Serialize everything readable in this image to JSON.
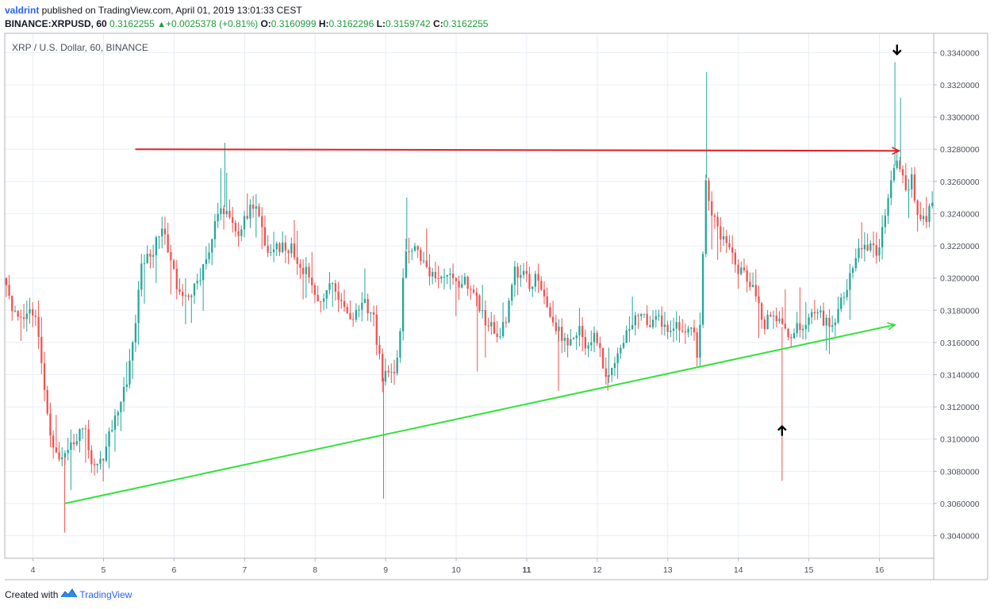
{
  "header": {
    "author": "valdrint",
    "published_text": " published on TradingView.com, April 01, 2019 13:01:33 CEST",
    "symbol": "BINANCE:XRPUSD, 60",
    "last": "0.3162255",
    "change_arrow": "▲",
    "change": "+0.0025378 (+0.81%)",
    "open_label": "O:",
    "open": "0.3160999",
    "high_label": "H:",
    "high": "0.3162296",
    "low_label": "L:",
    "low": "0.3159742",
    "close_label": "C:",
    "close": "0.3162255"
  },
  "footer": {
    "created_with": "Created with",
    "brand": "TradingView"
  },
  "chart_data": {
    "type": "candlestick",
    "title": "XRP / U.S. Dollar, 60, BINANCE",
    "x_ticks": [
      {
        "day": 4,
        "label": "4"
      },
      {
        "day": 5,
        "label": "5"
      },
      {
        "day": 6,
        "label": "6"
      },
      {
        "day": 7,
        "label": "7"
      },
      {
        "day": 8,
        "label": "8"
      },
      {
        "day": 9,
        "label": "9"
      },
      {
        "day": 10,
        "label": "10"
      },
      {
        "day": 11,
        "label": "11",
        "bold": true
      },
      {
        "day": 12,
        "label": "12"
      },
      {
        "day": 13,
        "label": "13"
      },
      {
        "day": 14,
        "label": "14"
      },
      {
        "day": 15,
        "label": "15"
      },
      {
        "day": 16,
        "label": "16"
      }
    ],
    "x_range": [
      3.6,
      16.77
    ],
    "y_range": [
      0.3026,
      0.3352
    ],
    "y_ticks": [
      0.304,
      0.306,
      0.308,
      0.31,
      0.312,
      0.314,
      0.316,
      0.318,
      0.32,
      0.322,
      0.324,
      0.326,
      0.328,
      0.33,
      0.332,
      0.334
    ],
    "y_tick_labels": [
      "0.3040000",
      "0.3060000",
      "0.3080000",
      "0.3100000",
      "0.3120000",
      "0.3140000",
      "0.3160000",
      "0.3180000",
      "0.3200000",
      "0.3220000",
      "0.3240000",
      "0.3260000",
      "0.3280000",
      "0.3300000",
      "0.3320000",
      "0.3340000"
    ],
    "grid": true,
    "colors": {
      "up": "#26a69a",
      "down": "#ef5350",
      "grid": "#e8eef6",
      "resistance": "#e0202a",
      "support": "#33e23a",
      "marker": "#000000"
    },
    "price_path": [
      [
        3.6,
        0.32
      ],
      [
        3.72,
        0.3178
      ],
      [
        3.85,
        0.3172
      ],
      [
        4.02,
        0.318
      ],
      [
        4.12,
        0.316
      ],
      [
        4.22,
        0.3115
      ],
      [
        4.3,
        0.3098
      ],
      [
        4.4,
        0.3084
      ],
      [
        4.5,
        0.3094
      ],
      [
        4.6,
        0.31
      ],
      [
        4.75,
        0.311
      ],
      [
        4.85,
        0.3086
      ],
      [
        4.95,
        0.3082
      ],
      [
        5.05,
        0.3095
      ],
      [
        5.2,
        0.3116
      ],
      [
        5.35,
        0.3135
      ],
      [
        5.48,
        0.317
      ],
      [
        5.55,
        0.3205
      ],
      [
        5.7,
        0.3215
      ],
      [
        5.85,
        0.3232
      ],
      [
        5.95,
        0.3218
      ],
      [
        6.05,
        0.3196
      ],
      [
        6.15,
        0.3184
      ],
      [
        6.3,
        0.3192
      ],
      [
        6.45,
        0.3208
      ],
      [
        6.55,
        0.3222
      ],
      [
        6.68,
        0.3248
      ],
      [
        6.8,
        0.3236
      ],
      [
        6.92,
        0.3228
      ],
      [
        7.05,
        0.3238
      ],
      [
        7.15,
        0.3248
      ],
      [
        7.25,
        0.3232
      ],
      [
        7.38,
        0.3212
      ],
      [
        7.55,
        0.3222
      ],
      [
        7.7,
        0.3218
      ],
      [
        7.85,
        0.3205
      ],
      [
        8.0,
        0.3196
      ],
      [
        8.1,
        0.3184
      ],
      [
        8.25,
        0.3198
      ],
      [
        8.4,
        0.3185
      ],
      [
        8.55,
        0.3174
      ],
      [
        8.7,
        0.3184
      ],
      [
        8.85,
        0.3176
      ],
      [
        8.97,
        0.3138
      ],
      [
        9.1,
        0.314
      ],
      [
        9.2,
        0.3148
      ],
      [
        9.3,
        0.3218
      ],
      [
        9.45,
        0.3222
      ],
      [
        9.6,
        0.3205
      ],
      [
        9.75,
        0.3198
      ],
      [
        9.9,
        0.3206
      ],
      [
        10.05,
        0.3195
      ],
      [
        10.15,
        0.32
      ],
      [
        10.3,
        0.319
      ],
      [
        10.4,
        0.3176
      ],
      [
        10.5,
        0.3172
      ],
      [
        10.62,
        0.3162
      ],
      [
        10.75,
        0.318
      ],
      [
        10.85,
        0.3204
      ],
      [
        10.95,
        0.3205
      ],
      [
        11.05,
        0.3196
      ],
      [
        11.15,
        0.32
      ],
      [
        11.25,
        0.319
      ],
      [
        11.35,
        0.318
      ],
      [
        11.45,
        0.3168
      ],
      [
        11.55,
        0.3162
      ],
      [
        11.65,
        0.316
      ],
      [
        11.75,
        0.3168
      ],
      [
        11.85,
        0.316
      ],
      [
        11.95,
        0.3164
      ],
      [
        12.05,
        0.3155
      ],
      [
        12.12,
        0.3138
      ],
      [
        12.2,
        0.3142
      ],
      [
        12.28,
        0.315
      ],
      [
        12.38,
        0.3162
      ],
      [
        12.5,
        0.317
      ],
      [
        12.62,
        0.3176
      ],
      [
        12.75,
        0.3172
      ],
      [
        12.88,
        0.3175
      ],
      [
        13.0,
        0.3168
      ],
      [
        13.15,
        0.3172
      ],
      [
        13.28,
        0.3166
      ],
      [
        13.38,
        0.3168
      ],
      [
        13.45,
        0.3148
      ],
      [
        13.5,
        0.319
      ],
      [
        13.55,
        0.3262
      ],
      [
        13.62,
        0.3244
      ],
      [
        13.72,
        0.323
      ],
      [
        13.82,
        0.3225
      ],
      [
        13.92,
        0.3215
      ],
      [
        14.02,
        0.3205
      ],
      [
        14.12,
        0.32
      ],
      [
        14.22,
        0.3194
      ],
      [
        14.3,
        0.3182
      ],
      [
        14.4,
        0.3172
      ],
      [
        14.5,
        0.3182
      ],
      [
        14.58,
        0.3172
      ],
      [
        14.65,
        0.3168
      ],
      [
        14.75,
        0.3165
      ],
      [
        14.85,
        0.317
      ],
      [
        14.95,
        0.3172
      ],
      [
        15.05,
        0.3176
      ],
      [
        15.15,
        0.3178
      ],
      [
        15.25,
        0.3172
      ],
      [
        15.38,
        0.3172
      ],
      [
        15.48,
        0.3184
      ],
      [
        15.58,
        0.32
      ],
      [
        15.68,
        0.3215
      ],
      [
        15.78,
        0.3222
      ],
      [
        15.88,
        0.3218
      ],
      [
        15.98,
        0.3215
      ],
      [
        16.05,
        0.3228
      ],
      [
        16.12,
        0.3245
      ],
      [
        16.18,
        0.3262
      ],
      [
        16.25,
        0.3276
      ],
      [
        16.32,
        0.3268
      ],
      [
        16.4,
        0.3256
      ],
      [
        16.48,
        0.3262
      ],
      [
        16.55,
        0.3238
      ],
      [
        16.62,
        0.3234
      ],
      [
        16.7,
        0.324
      ],
      [
        16.77,
        0.3244
      ]
    ],
    "spikes": [
      [
        4.45,
        0.3042,
        "low"
      ],
      [
        6.72,
        0.3284,
        "high"
      ],
      [
        8.97,
        0.3063,
        "low"
      ],
      [
        9.3,
        0.325,
        "high"
      ],
      [
        13.55,
        0.3328,
        "high"
      ],
      [
        14.62,
        0.3074,
        "low"
      ],
      [
        16.22,
        0.3334,
        "high"
      ],
      [
        16.3,
        0.3312,
        "high"
      ],
      [
        12.15,
        0.313,
        "low"
      ],
      [
        11.45,
        0.313,
        "low"
      ],
      [
        10.3,
        0.3142,
        "low"
      ]
    ],
    "annotations": [
      {
        "kind": "resistance-line",
        "from": [
          5.45,
          0.328
        ],
        "to": [
          16.28,
          0.3279
        ]
      },
      {
        "kind": "support-line",
        "from": [
          4.45,
          0.306
        ],
        "to": [
          16.22,
          0.3171
        ]
      },
      {
        "kind": "down-arrow",
        "at": [
          16.25,
          0.3342
        ]
      },
      {
        "kind": "up-arrow",
        "at": [
          14.62,
          0.3105
        ]
      }
    ]
  }
}
